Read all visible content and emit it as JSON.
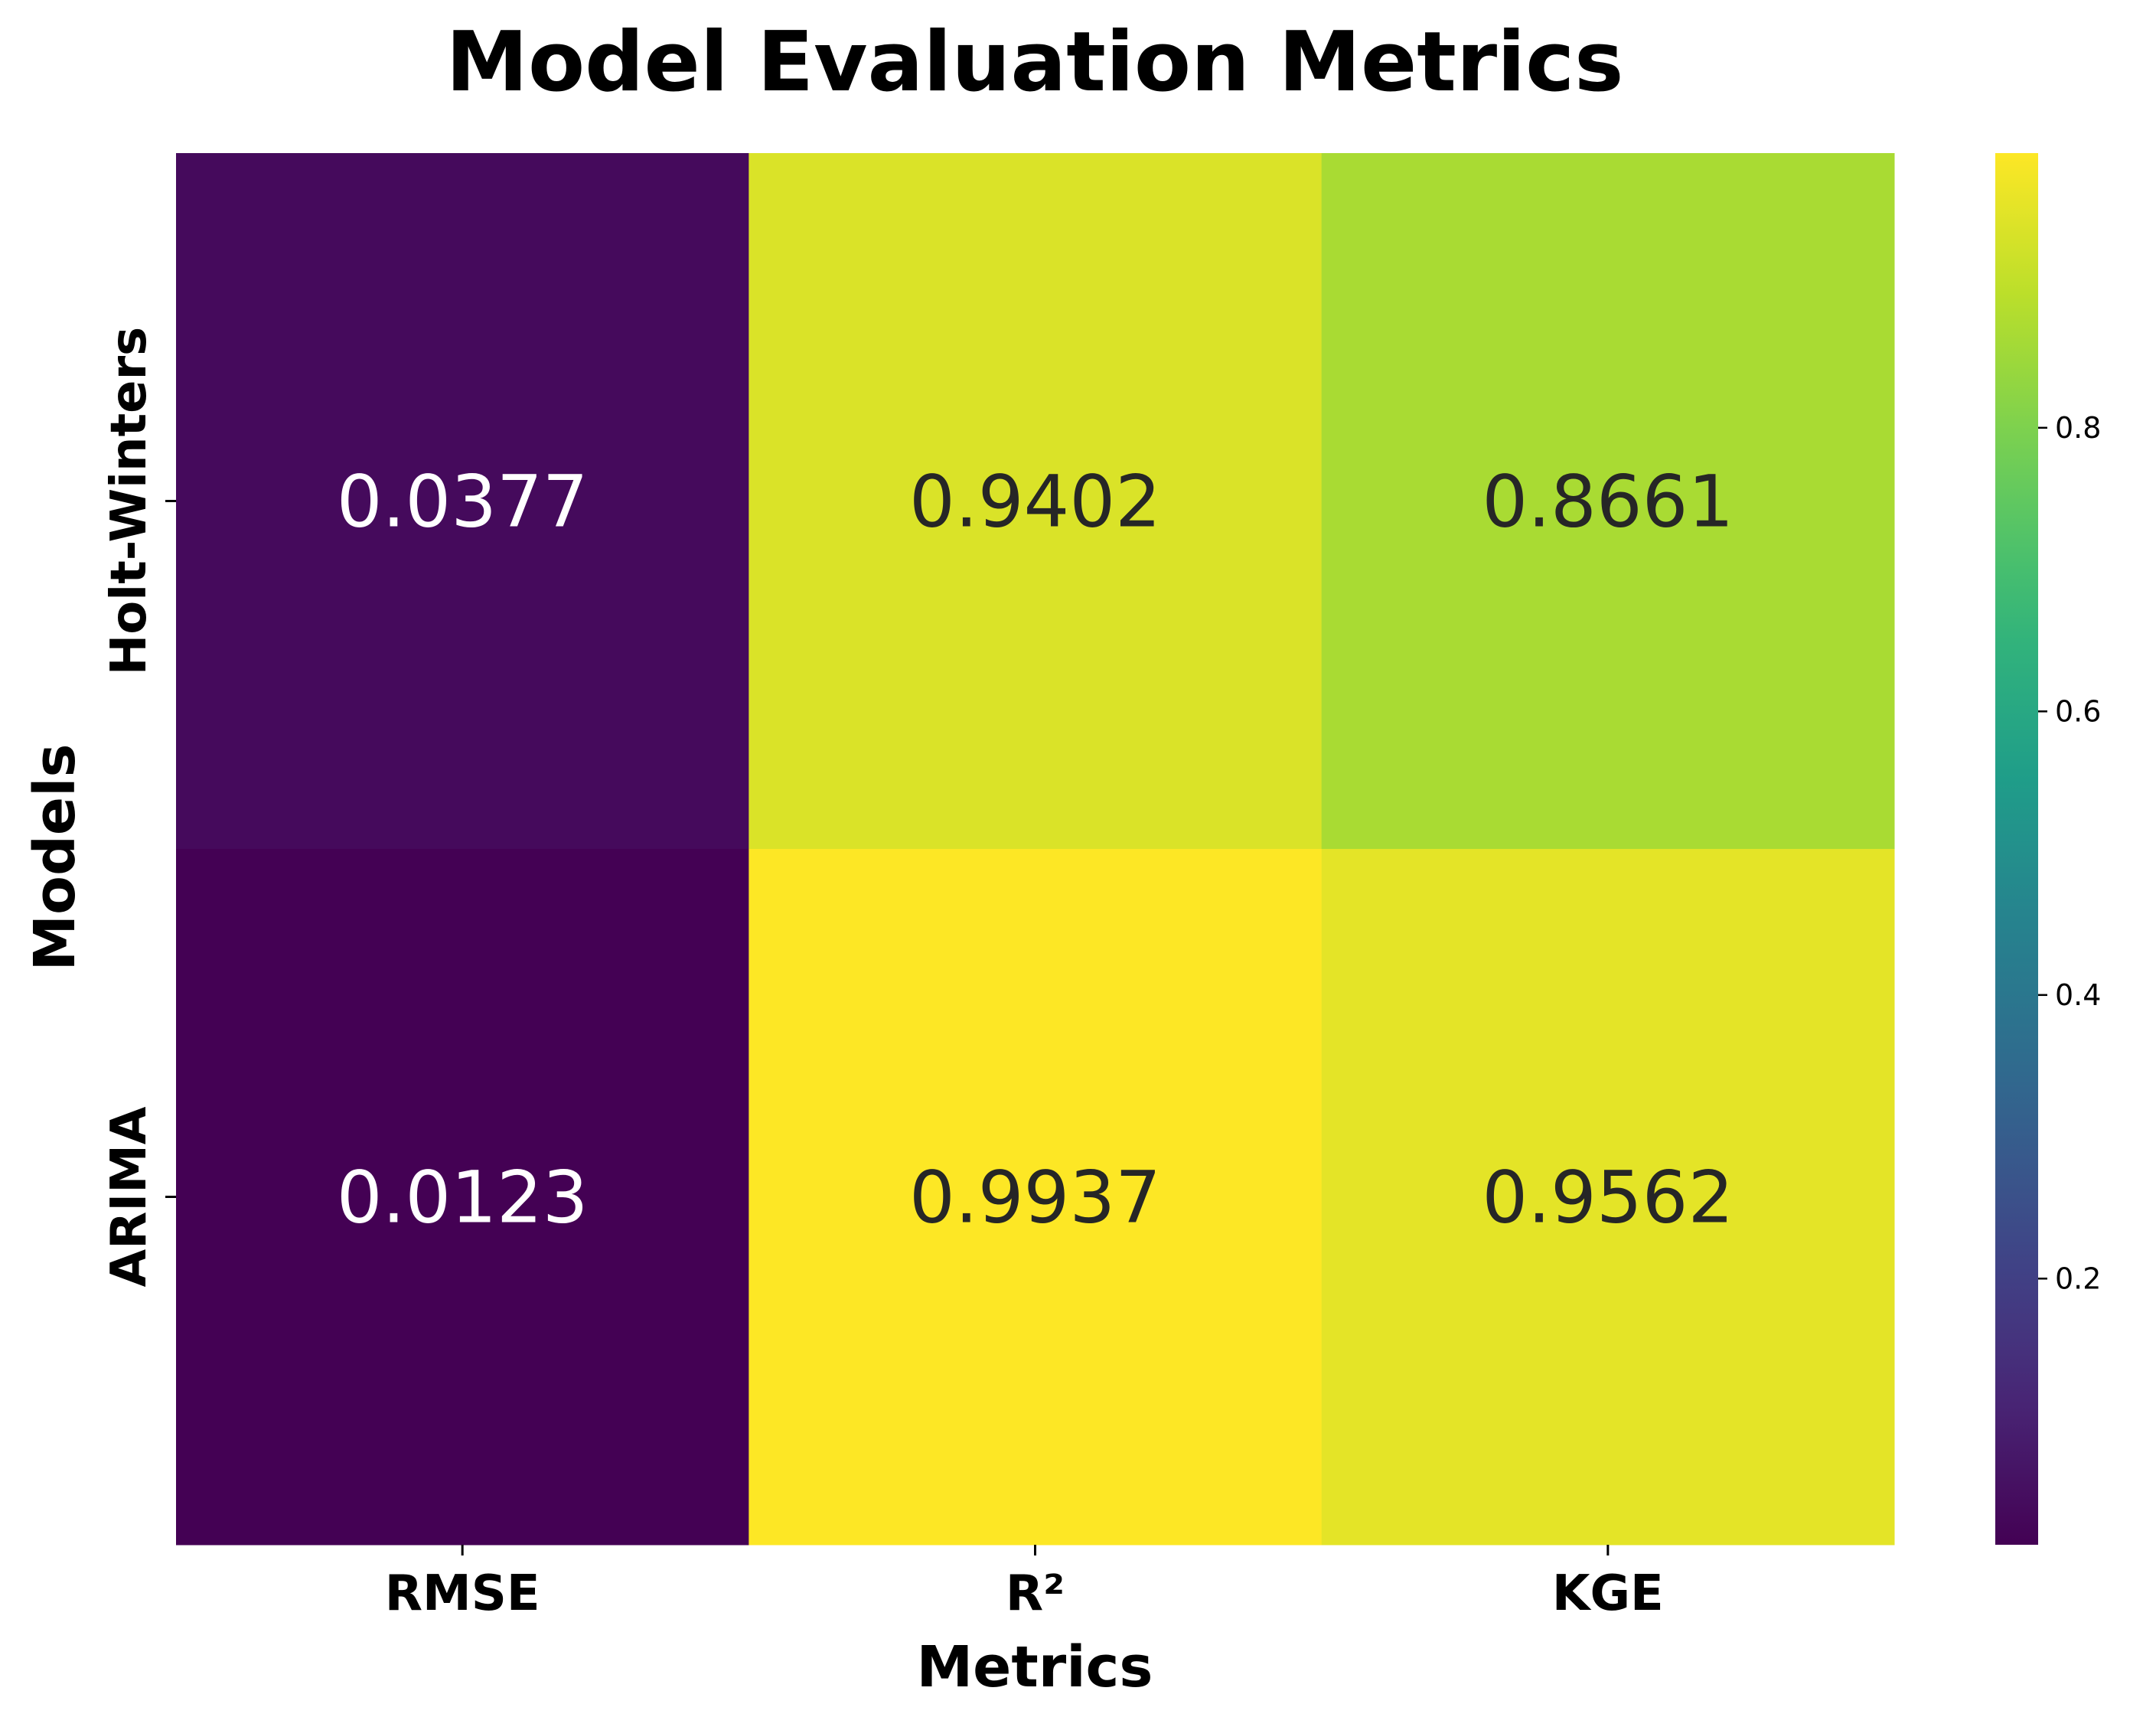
{
  "chart_data": {
    "type": "heatmap",
    "title": "Model Evaluation Metrics",
    "xlabel": "Metrics",
    "ylabel": "Models",
    "columns": [
      "RMSE",
      "R²",
      "KGE"
    ],
    "rows": [
      "Holt-Winters",
      "ARIMA"
    ],
    "values": [
      [
        0.0377,
        0.9402,
        0.8661
      ],
      [
        0.0123,
        0.9937,
        0.9562
      ]
    ],
    "value_labels": [
      [
        "0.0377",
        "0.9402",
        "0.8661"
      ],
      [
        "0.0123",
        "0.9937",
        "0.9562"
      ]
    ],
    "colormap": "viridis",
    "colorbar": {
      "range": [
        0.0123,
        0.9937
      ],
      "ticks": [
        0.2,
        0.4,
        0.6,
        0.8
      ],
      "tick_labels": [
        "0.2",
        "0.4",
        "0.6",
        "0.8"
      ]
    },
    "legend": "colorbar-right"
  }
}
